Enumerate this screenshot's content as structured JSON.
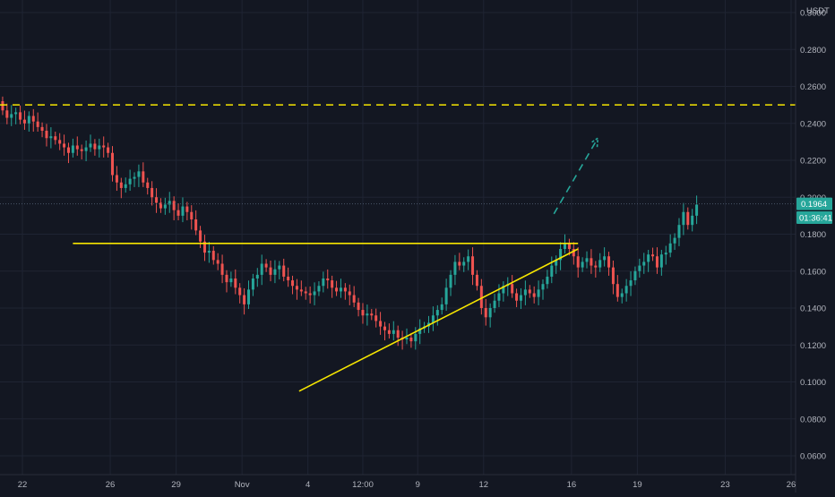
{
  "chart_data": {
    "type": "candlestick",
    "quote_currency": "USDT",
    "last_price": "0.1964",
    "countdown": "01:36:41",
    "y_axis": {
      "range": [
        0.05,
        0.305
      ],
      "ticks": [
        "0.3000",
        "0.2800",
        "0.2600",
        "0.2400",
        "0.2200",
        "0.2000",
        "0.1800",
        "0.1600",
        "0.1400",
        "0.1200",
        "0.1000",
        "0.0800",
        "0.0600"
      ],
      "tick_values": [
        0.3,
        0.28,
        0.26,
        0.24,
        0.22,
        0.2,
        0.18,
        0.16,
        0.14,
        0.12,
        0.1,
        0.08,
        0.06
      ]
    },
    "x_axis": {
      "ticks": [
        "22",
        "26",
        "29",
        "Nov",
        "4",
        "12:00",
        "9",
        "12",
        "16",
        "19",
        "23",
        "26"
      ],
      "tick_days": [
        -10,
        -6,
        -3,
        0,
        3,
        5.5,
        8,
        11,
        15,
        18,
        22,
        25
      ]
    },
    "grid": true,
    "colors": {
      "up": "#26a69a",
      "down": "#ef5350",
      "annotation": "#f7e600",
      "projection": "#26a69a",
      "background": "#131722",
      "grid": "#1f2433"
    },
    "candles": {
      "start_day": -11.5,
      "step_days": 0.2,
      "open": 0.242,
      "closes": [
        0.245,
        0.248,
        0.252,
        0.247,
        0.243,
        0.245,
        0.246,
        0.242,
        0.24,
        0.244,
        0.241,
        0.238,
        0.236,
        0.232,
        0.233,
        0.231,
        0.229,
        0.227,
        0.224,
        0.228,
        0.226,
        0.225,
        0.227,
        0.229,
        0.226,
        0.228,
        0.227,
        0.224,
        0.212,
        0.208,
        0.205,
        0.207,
        0.21,
        0.211,
        0.214,
        0.208,
        0.205,
        0.2,
        0.197,
        0.194,
        0.196,
        0.198,
        0.193,
        0.19,
        0.195,
        0.192,
        0.188,
        0.182,
        0.176,
        0.17,
        0.171,
        0.166,
        0.164,
        0.158,
        0.154,
        0.156,
        0.151,
        0.147,
        0.142,
        0.15,
        0.156,
        0.158,
        0.164,
        0.162,
        0.158,
        0.161,
        0.163,
        0.157,
        0.155,
        0.152,
        0.15,
        0.149,
        0.148,
        0.147,
        0.149,
        0.152,
        0.156,
        0.155,
        0.151,
        0.149,
        0.151,
        0.149,
        0.147,
        0.143,
        0.139,
        0.136,
        0.137,
        0.136,
        0.133,
        0.13,
        0.128,
        0.126,
        0.128,
        0.124,
        0.123,
        0.124,
        0.122,
        0.126,
        0.129,
        0.13,
        0.132,
        0.136,
        0.139,
        0.142,
        0.151,
        0.158,
        0.165,
        0.163,
        0.165,
        0.168,
        0.158,
        0.152,
        0.14,
        0.135,
        0.14,
        0.144,
        0.148,
        0.152,
        0.153,
        0.148,
        0.144,
        0.147,
        0.15,
        0.148,
        0.146,
        0.15,
        0.153,
        0.157,
        0.163,
        0.166,
        0.172,
        0.175,
        0.172,
        0.168,
        0.162,
        0.165,
        0.167,
        0.163,
        0.162,
        0.166,
        0.168,
        0.162,
        0.153,
        0.146,
        0.148,
        0.152,
        0.155,
        0.16,
        0.163,
        0.165,
        0.169,
        0.168,
        0.162,
        0.169,
        0.17,
        0.175,
        0.178,
        0.185,
        0.192,
        0.185,
        0.19,
        0.196
      ]
    },
    "annotations": [
      {
        "kind": "horizontal-dashed",
        "price": 0.25
      },
      {
        "kind": "trendline",
        "x1": -7.7,
        "y1": 0.175,
        "x2": 15.3,
        "y2": 0.175
      },
      {
        "kind": "trendline",
        "x1": 2.6,
        "y1": 0.095,
        "x2": 15.3,
        "y2": 0.172
      },
      {
        "kind": "projection-dashed",
        "x1": 14.2,
        "y1": 0.191,
        "x2": 16.2,
        "y2": 0.232,
        "arrow": true
      }
    ]
  }
}
